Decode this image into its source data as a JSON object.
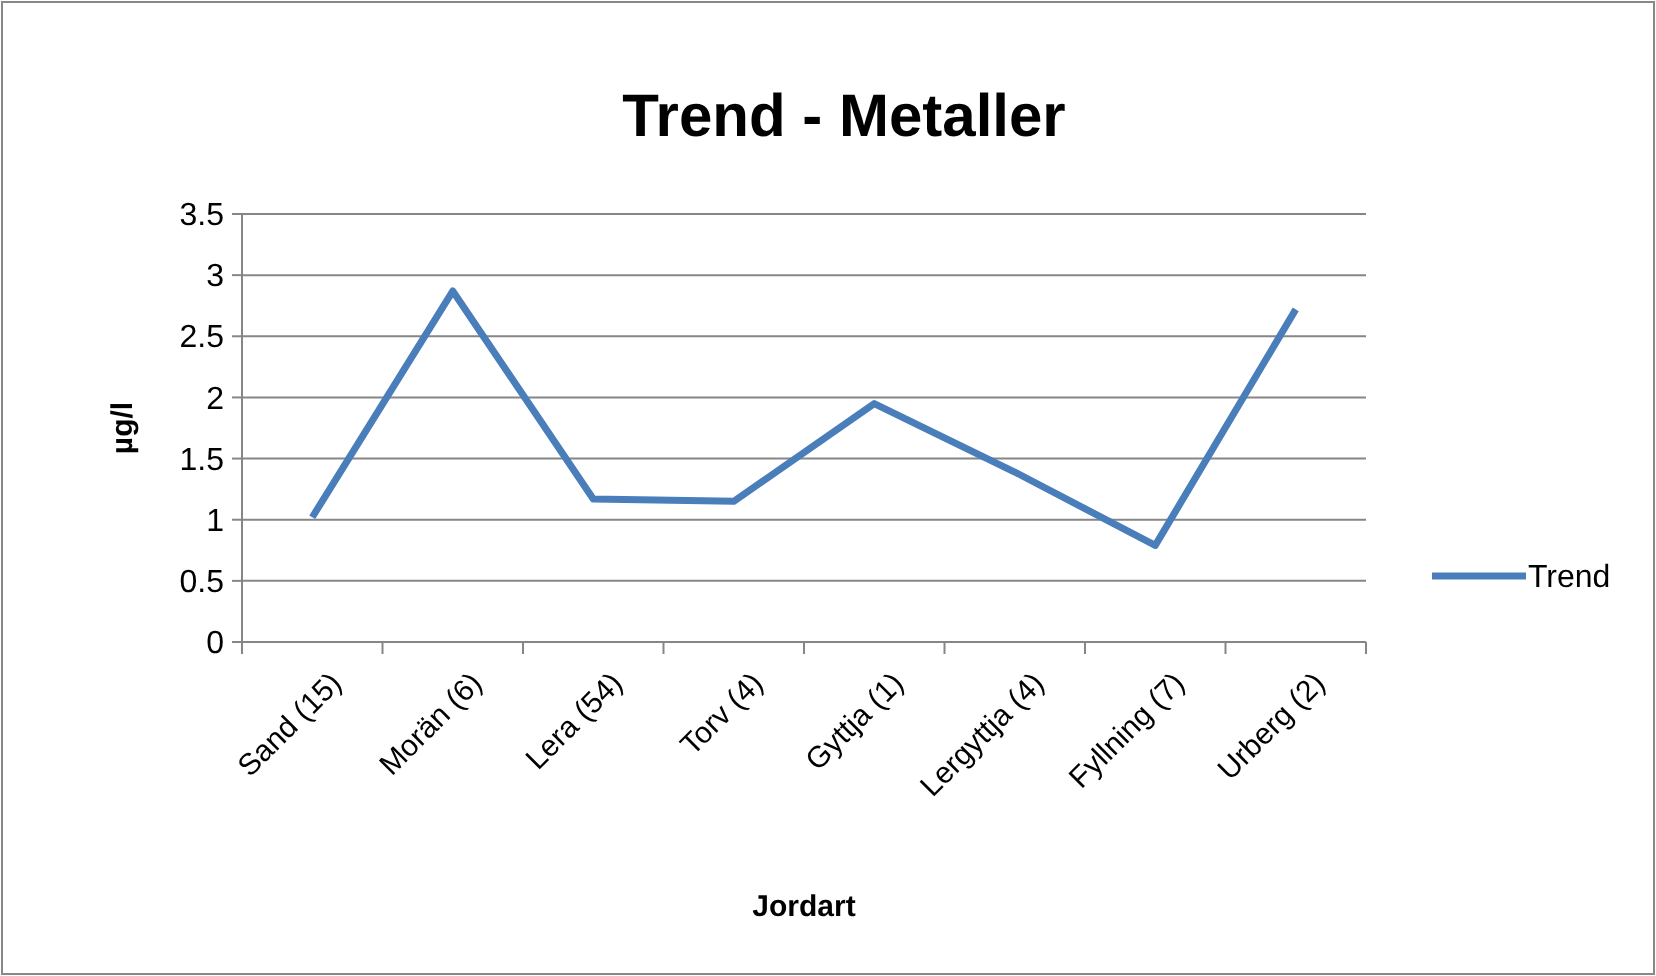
{
  "chart_data": {
    "type": "line",
    "title": "Trend - Metaller",
    "xlabel": "Jordart",
    "ylabel": "µg/l",
    "categories": [
      "Sand (15)",
      "Morän (6)",
      "Lera (54)",
      "Torv (4)",
      "Gyttja (1)",
      "Lergyttja (4)",
      "Fyllning (7)",
      "Urberg (2)"
    ],
    "series": [
      {
        "name": "Trend",
        "color": "#4a7ebb",
        "values": [
          1.02,
          2.87,
          1.17,
          1.15,
          1.95,
          1.39,
          0.79,
          2.72
        ]
      }
    ],
    "ylim": [
      0,
      3.5
    ],
    "yticks": [
      0,
      0.5,
      1,
      1.5,
      2,
      2.5,
      3,
      3.5
    ],
    "grid": "y",
    "legend": "right",
    "marker": "none",
    "line_style": "solid"
  }
}
